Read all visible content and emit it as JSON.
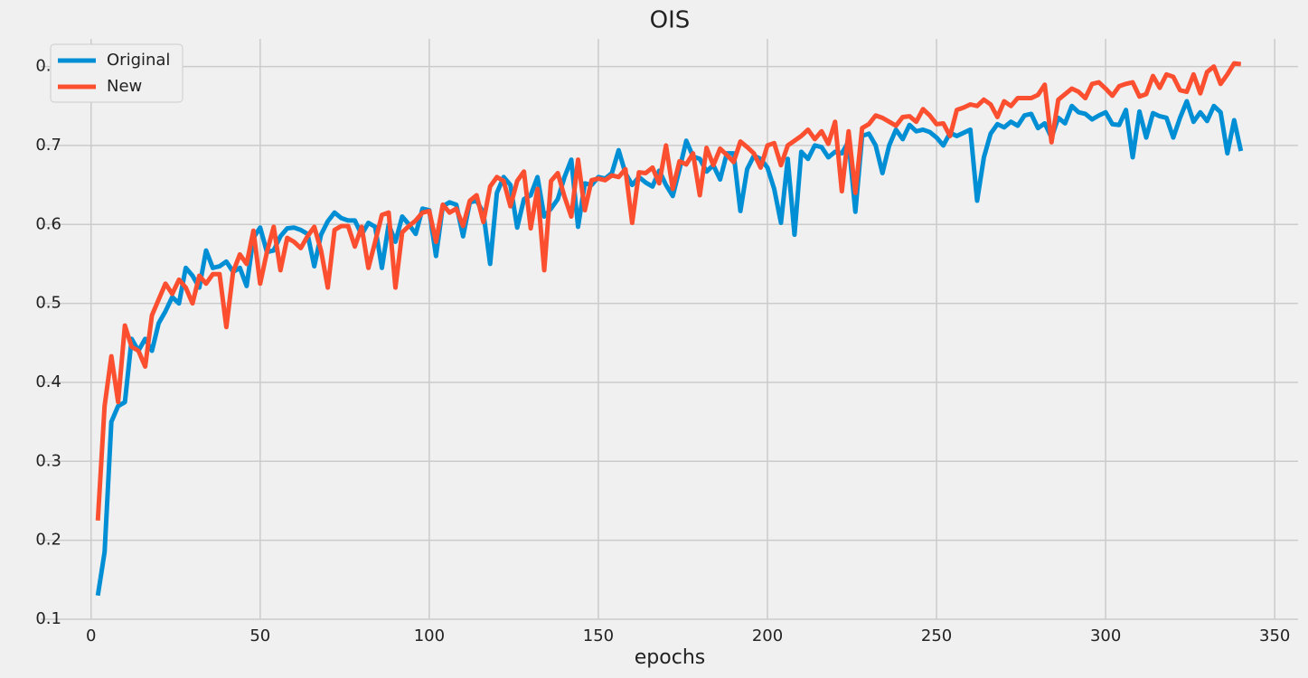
{
  "chart_data": {
    "type": "line",
    "title": "OIS",
    "x_label": "epochs",
    "x": [
      2,
      4,
      6,
      8,
      10,
      12,
      14,
      16,
      18,
      20,
      22,
      24,
      26,
      28,
      30,
      32,
      34,
      36,
      38,
      40,
      42,
      44,
      46,
      48,
      50,
      52,
      54,
      56,
      58,
      60,
      62,
      64,
      66,
      68,
      70,
      72,
      74,
      76,
      78,
      80,
      82,
      84,
      86,
      88,
      90,
      92,
      94,
      96,
      98,
      100,
      102,
      104,
      106,
      108,
      110,
      112,
      114,
      116,
      118,
      120,
      122,
      124,
      126,
      128,
      130,
      132,
      134,
      136,
      138,
      140,
      142,
      144,
      146,
      148,
      150,
      152,
      154,
      156,
      158,
      160,
      162,
      164,
      166,
      168,
      170,
      172,
      174,
      176,
      178,
      180,
      182,
      184,
      186,
      188,
      190,
      192,
      194,
      196,
      198,
      200,
      202,
      204,
      206,
      208,
      210,
      212,
      214,
      216,
      218,
      220,
      222,
      224,
      226,
      228,
      230,
      232,
      234,
      236,
      238,
      240,
      242,
      244,
      246,
      248,
      250,
      252,
      254,
      256,
      258,
      260,
      262,
      264,
      266,
      268,
      270,
      272,
      274,
      276,
      278,
      280,
      282,
      284,
      286,
      288,
      290,
      292,
      294,
      296,
      298,
      300,
      302,
      304,
      306,
      308,
      310,
      312,
      314,
      316,
      318,
      320,
      322,
      324,
      326,
      328,
      330,
      332,
      334,
      336,
      338,
      340
    ],
    "series": [
      {
        "name": "Original",
        "color": "#008fd5",
        "values": [
          0.13,
          0.185,
          0.35,
          0.37,
          0.375,
          0.455,
          0.44,
          0.455,
          0.44,
          0.475,
          0.49,
          0.508,
          0.5,
          0.545,
          0.535,
          0.52,
          0.567,
          0.545,
          0.547,
          0.553,
          0.54,
          0.545,
          0.522,
          0.583,
          0.596,
          0.565,
          0.567,
          0.585,
          0.595,
          0.596,
          0.593,
          0.588,
          0.547,
          0.587,
          0.604,
          0.615,
          0.608,
          0.605,
          0.605,
          0.587,
          0.602,
          0.597,
          0.545,
          0.6,
          0.578,
          0.61,
          0.6,
          0.588,
          0.62,
          0.618,
          0.56,
          0.623,
          0.628,
          0.625,
          0.585,
          0.628,
          0.63,
          0.615,
          0.55,
          0.64,
          0.66,
          0.65,
          0.596,
          0.632,
          0.637,
          0.66,
          0.61,
          0.62,
          0.632,
          0.66,
          0.682,
          0.597,
          0.652,
          0.65,
          0.66,
          0.658,
          0.665,
          0.694,
          0.665,
          0.65,
          0.66,
          0.653,
          0.648,
          0.668,
          0.65,
          0.636,
          0.67,
          0.706,
          0.686,
          0.683,
          0.667,
          0.675,
          0.657,
          0.69,
          0.69,
          0.617,
          0.67,
          0.687,
          0.683,
          0.672,
          0.645,
          0.602,
          0.683,
          0.587,
          0.692,
          0.683,
          0.7,
          0.698,
          0.685,
          0.692,
          0.69,
          0.705,
          0.616,
          0.712,
          0.715,
          0.7,
          0.665,
          0.7,
          0.72,
          0.708,
          0.726,
          0.718,
          0.72,
          0.717,
          0.71,
          0.7,
          0.716,
          0.712,
          0.716,
          0.72,
          0.63,
          0.685,
          0.715,
          0.727,
          0.723,
          0.73,
          0.725,
          0.738,
          0.74,
          0.722,
          0.728,
          0.71,
          0.735,
          0.728,
          0.75,
          0.742,
          0.74,
          0.733,
          0.738,
          0.742,
          0.727,
          0.726,
          0.745,
          0.685,
          0.743,
          0.71,
          0.741,
          0.737,
          0.735,
          0.71,
          0.735,
          0.756,
          0.73,
          0.742,
          0.731,
          0.75,
          0.742,
          0.69,
          0.732,
          0.693
        ]
      },
      {
        "name": "New",
        "color": "#fc4f30",
        "values": [
          0.225,
          0.37,
          0.433,
          0.375,
          0.472,
          0.445,
          0.44,
          0.42,
          0.485,
          0.505,
          0.525,
          0.512,
          0.53,
          0.52,
          0.5,
          0.535,
          0.525,
          0.537,
          0.537,
          0.47,
          0.54,
          0.562,
          0.55,
          0.592,
          0.525,
          0.565,
          0.597,
          0.542,
          0.583,
          0.578,
          0.57,
          0.585,
          0.597,
          0.567,
          0.52,
          0.593,
          0.598,
          0.598,
          0.572,
          0.597,
          0.545,
          0.578,
          0.612,
          0.615,
          0.52,
          0.59,
          0.598,
          0.605,
          0.615,
          0.617,
          0.578,
          0.625,
          0.615,
          0.62,
          0.598,
          0.63,
          0.637,
          0.603,
          0.648,
          0.66,
          0.655,
          0.623,
          0.655,
          0.667,
          0.595,
          0.645,
          0.542,
          0.655,
          0.665,
          0.635,
          0.61,
          0.682,
          0.618,
          0.656,
          0.658,
          0.656,
          0.662,
          0.66,
          0.67,
          0.602,
          0.666,
          0.665,
          0.672,
          0.652,
          0.7,
          0.645,
          0.68,
          0.676,
          0.69,
          0.637,
          0.697,
          0.675,
          0.696,
          0.688,
          0.679,
          0.705,
          0.698,
          0.69,
          0.672,
          0.7,
          0.703,
          0.675,
          0.7,
          0.706,
          0.712,
          0.72,
          0.708,
          0.718,
          0.702,
          0.73,
          0.642,
          0.718,
          0.64,
          0.722,
          0.727,
          0.738,
          0.735,
          0.73,
          0.725,
          0.736,
          0.737,
          0.73,
          0.746,
          0.738,
          0.727,
          0.728,
          0.712,
          0.745,
          0.748,
          0.752,
          0.75,
          0.758,
          0.752,
          0.736,
          0.756,
          0.75,
          0.76,
          0.76,
          0.76,
          0.764,
          0.777,
          0.704,
          0.758,
          0.765,
          0.772,
          0.768,
          0.76,
          0.778,
          0.78,
          0.772,
          0.763,
          0.775,
          0.778,
          0.78,
          0.762,
          0.765,
          0.788,
          0.773,
          0.79,
          0.787,
          0.77,
          0.768,
          0.79,
          0.766,
          0.793,
          0.8,
          0.778,
          0.79,
          0.804,
          0.803
        ]
      }
    ],
    "xlim": [
      -14.9,
      356.9
    ],
    "xticks": [
      0,
      50,
      100,
      150,
      200,
      250,
      300,
      350
    ],
    "ylim": [
      0.1,
      0.835
    ],
    "yticks": [
      0.1,
      0.2,
      0.3,
      0.4,
      0.5,
      0.6,
      0.7,
      0.8
    ],
    "grid": true,
    "legend": "upper left"
  }
}
